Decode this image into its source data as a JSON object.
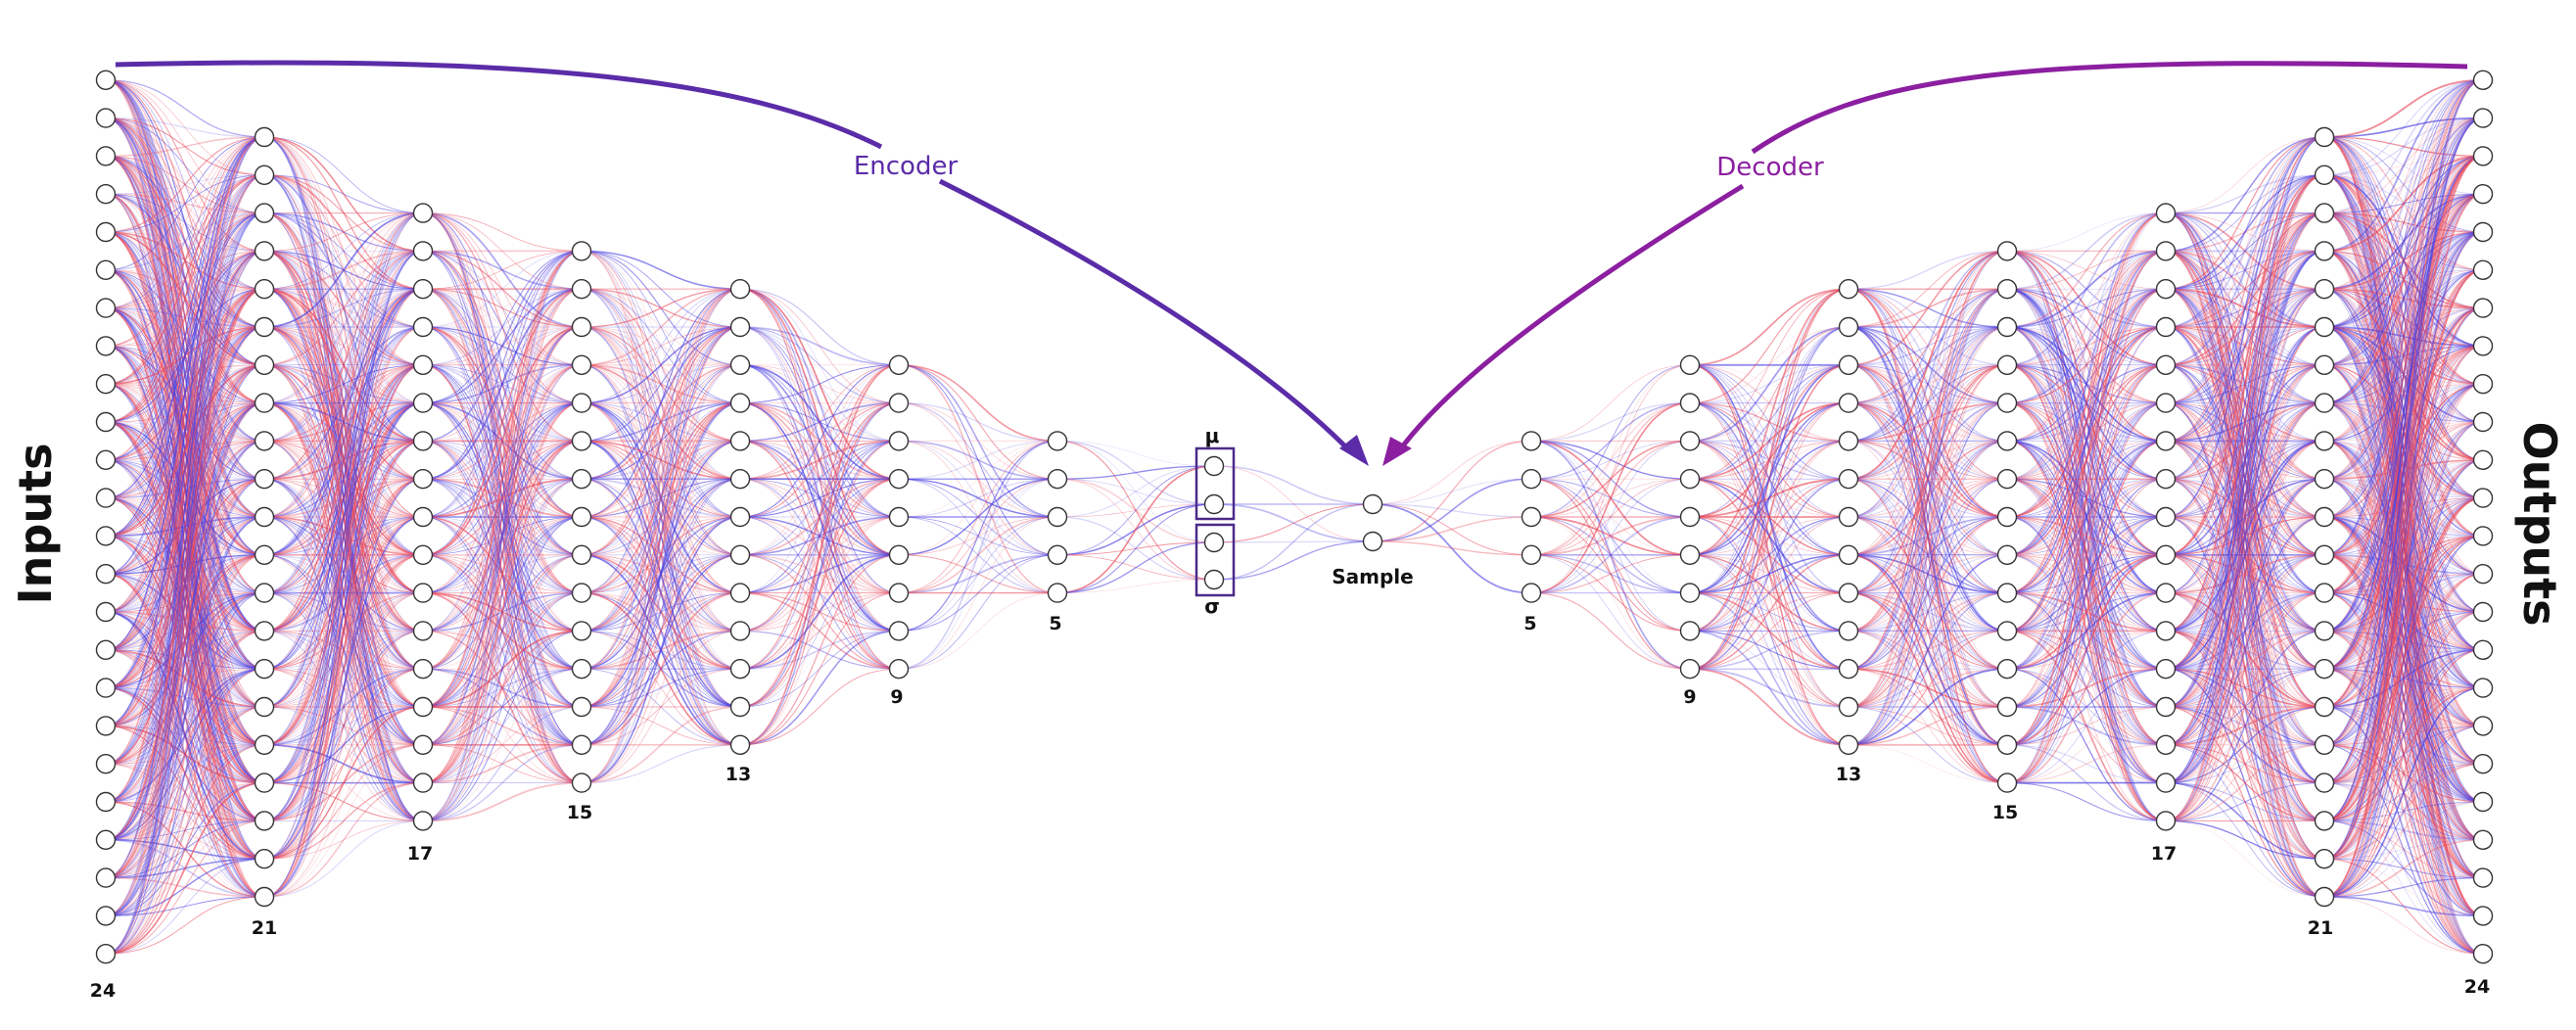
{
  "labels": {
    "inputs": "Inputs",
    "outputs": "Outputs",
    "encoder": "Encoder",
    "decoder": "Decoder",
    "mu": "μ",
    "sigma": "σ",
    "sample": "Sample"
  },
  "network": {
    "encoder_layers": [
      24,
      21,
      17,
      15,
      13,
      9,
      5
    ],
    "latent": {
      "mu": 2,
      "sigma": 2
    },
    "sample": 2,
    "decoder_layers": [
      5,
      9,
      13,
      15,
      17,
      21,
      24
    ],
    "layer_count_labels": [
      "24",
      "21",
      "17",
      "15",
      "13",
      "9",
      "5",
      "5",
      "9",
      "13",
      "15",
      "17",
      "21",
      "24"
    ]
  },
  "colors": {
    "positive_weight": "#e8485a",
    "negative_weight": "#4a3fe0",
    "encoder_arrow": "#5b2ca8",
    "decoder_arrow": "#8b1fa0",
    "latent_box": "#4b2a8a",
    "node_stroke": "#333333",
    "node_fill": "#ffffff"
  }
}
